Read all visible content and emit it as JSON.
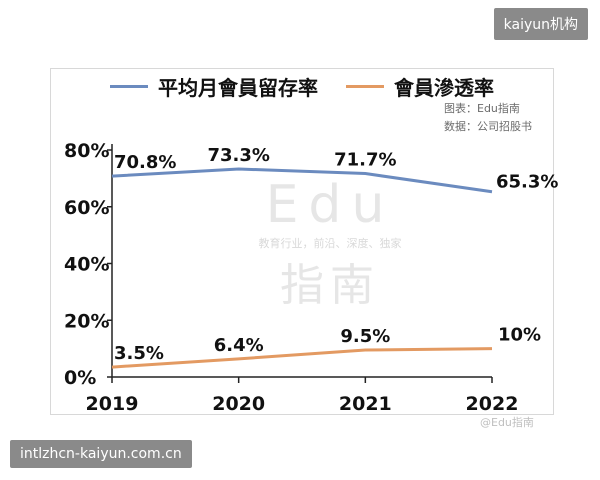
{
  "badges": {
    "top": "kaiyun机构",
    "bottom": "intlzhcn-kaiyun.com.cn"
  },
  "source": {
    "line1": "图表：Edu指南",
    "line2": "数据：公司招股书"
  },
  "watermark": {
    "line1": "Edu",
    "line2": "教育行业，前沿、深度、独家",
    "line3": "指南",
    "corner": "@Edu指南"
  },
  "chart_data": {
    "type": "line",
    "x": [
      "2019",
      "2020",
      "2021",
      "2022"
    ],
    "series": [
      {
        "name": "平均月會員留存率",
        "values": [
          70.8,
          73.3,
          71.7,
          65.3
        ],
        "labels": [
          "70.8%",
          "73.3%",
          "71.7%",
          "65.3%"
        ],
        "color": "#6b8bbf"
      },
      {
        "name": "會員滲透率",
        "values": [
          3.5,
          6.4,
          9.5,
          10
        ],
        "labels": [
          "3.5%",
          "6.4%",
          "9.5%",
          "10%"
        ],
        "color": "#e39a62"
      }
    ],
    "yticks": [
      "0%",
      "20%",
      "40%",
      "60%",
      "80%"
    ],
    "ylim": [
      0,
      80
    ],
    "legend": "top"
  }
}
